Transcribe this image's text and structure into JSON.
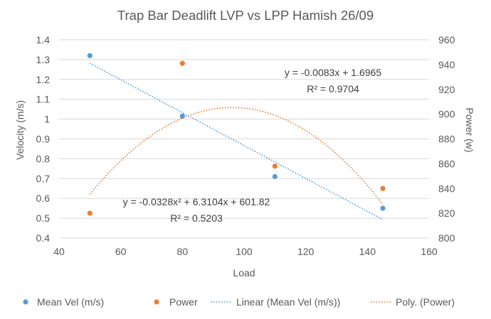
{
  "chart_data": {
    "type": "scatter",
    "title": "Trap Bar Deadlift LVP vs LPP Hamish 26/09",
    "xlabel": "Load",
    "ylabel": "Velocity (m/s)",
    "y2label": "Power (w)",
    "xlim": [
      40,
      160
    ],
    "xticks": [
      40,
      60,
      80,
      100,
      120,
      140,
      160
    ],
    "ylim": [
      0.4,
      1.4
    ],
    "yticks": [
      0.4,
      0.5,
      0.6,
      0.7,
      0.8,
      0.9,
      1,
      1.1,
      1.2,
      1.3,
      1.4
    ],
    "ytick_labels": [
      "0.4",
      "0.5",
      "0.6",
      "0.7",
      "0.8",
      "0.9",
      "1",
      "1.1",
      "1.2",
      "1.3",
      "1.4"
    ],
    "y2lim": [
      800,
      960
    ],
    "y2ticks": [
      800,
      820,
      840,
      860,
      880,
      900,
      920,
      940,
      960
    ],
    "grid": "horizontal",
    "legend_position": "bottom",
    "series": [
      {
        "name": "Mean Vel (m/s)",
        "axis": "left",
        "color": "#5B9BD5",
        "points": [
          {
            "x": 50,
            "y": 1.32
          },
          {
            "x": 80,
            "y": 1.015
          },
          {
            "x": 110,
            "y": 0.71
          },
          {
            "x": 145,
            "y": 0.55
          }
        ]
      },
      {
        "name": "Power",
        "axis": "right",
        "color": "#ED7D31",
        "points": [
          {
            "x": 50,
            "y": 820
          },
          {
            "x": 80,
            "y": 941
          },
          {
            "x": 110,
            "y": 858
          },
          {
            "x": 145,
            "y": 840
          }
        ]
      }
    ],
    "trendlines": [
      {
        "name": "Linear (Mean Vel (m/s))",
        "kind": "linear",
        "axis": "left",
        "color": "#5B9BD5",
        "coefficients": [
          -0.0083,
          1.6965
        ],
        "x_range": [
          50,
          145
        ],
        "equation": "y = -0.0083x + 1.6965",
        "r2_label": "R² = 0.9704"
      },
      {
        "name": "Poly. (Power)",
        "kind": "poly2",
        "axis": "right",
        "color": "#ED7D31",
        "coefficients": [
          -0.0328,
          6.3104,
          601.82
        ],
        "x_range": [
          50,
          145
        ],
        "equation": "y = -0.0328x² + 6.3104x + 601.82",
        "r2_label": "R² = 0.5203"
      }
    ],
    "legend": [
      {
        "label": "Mean Vel (m/s)",
        "marker": "dot",
        "color": "#5B9BD5"
      },
      {
        "label": "Power",
        "marker": "dot",
        "color": "#ED7D31"
      },
      {
        "label": "Linear (Mean Vel (m/s))",
        "marker": "dotted-line",
        "color": "#5B9BD5"
      },
      {
        "label": "Poly. (Power)",
        "marker": "dotted-line",
        "color": "#ED7D31"
      }
    ]
  }
}
